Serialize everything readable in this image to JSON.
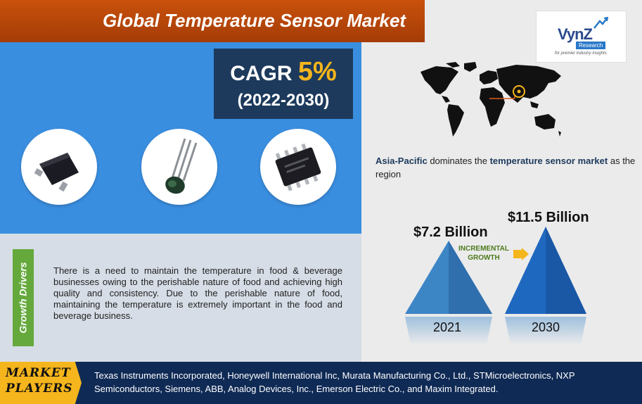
{
  "title": "Global Temperature Sensor Market",
  "logo": {
    "name": "VynZ",
    "badge": "Research",
    "tagline": "for premier industry insights"
  },
  "cagr": {
    "label": "CAGR",
    "value": "5%",
    "period": "(2022-2030)"
  },
  "growth_drivers": {
    "label": "Growth Drivers",
    "text": "There is a need to maintain the temperature in food & beverage businesses owing to the perishable nature of food and achieving high quality and consistency. Due to the perishable nature of food, maintaining the temperature is extremely important in the food and beverage business."
  },
  "region": {
    "name": "Asia-Pacific",
    "mid": " dominates the ",
    "market": "temperature sensor market",
    "tail": " as the region"
  },
  "market_size": {
    "value_2021": "$7.2 Billion",
    "value_2030": "$11.5 Billion",
    "year_2021": "2021",
    "year_2030": "2030",
    "incremental_line1": "INCREMENTAL",
    "incremental_line2": "GROWTH"
  },
  "footer": {
    "label_line1": "MARKET",
    "label_line2": "PLAYERS",
    "players": "Texas Instruments Incorporated, Honeywell International Inc, Murata Manufacturing Co., Ltd., STMicroelectronics, NXP Semiconductors, Siemens, ABB, Analog Devices, Inc., Emerson Electric Co., and Maxim Integrated."
  },
  "colors": {
    "banner": "#c9510c",
    "blue_panel": "#3a8ee0",
    "navy": "#1d3a5c",
    "accent": "#f5b51c",
    "green": "#65a93c",
    "footer": "#0f2a55"
  }
}
